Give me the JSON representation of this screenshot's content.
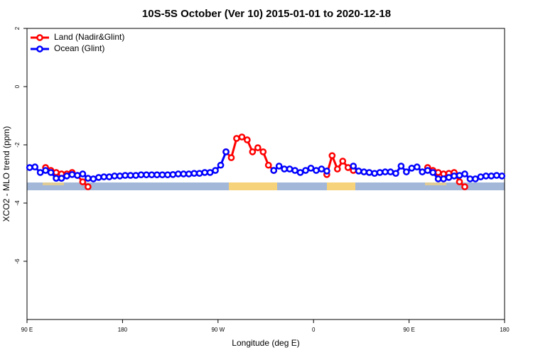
{
  "chart_data": {
    "type": "line",
    "title": "10S-5S October (Ver 10)   2015-01-01 to 2020-12-18",
    "x_label": "Longitude (deg E)",
    "y_label": "XCO2 - MLO trend (ppm)",
    "xlim": [
      90,
      540
    ],
    "ylim": [
      -8,
      2
    ],
    "xticks": [
      {
        "value": 90,
        "label": "90 E"
      },
      180,
      {
        "value": 270,
        "label": "90 W"
      },
      {
        "value": 360,
        "label": "0"
      },
      {
        "value": 450,
        "label": "90 E"
      },
      {
        "value": 540,
        "label": "180"
      }
    ],
    "yticks": [
      2,
      0,
      -2,
      -4,
      -6
    ],
    "legend": "top-left",
    "x": [
      92.5,
      97.5,
      102.5,
      107.5,
      112.5,
      117.5,
      122.5,
      127.5,
      132.5,
      137.5,
      142.5,
      147.5,
      152.5,
      157.5,
      162.5,
      167.5,
      172.5,
      177.5,
      182.5,
      187.5,
      192.5,
      197.5,
      202.5,
      207.5,
      212.5,
      217.5,
      222.5,
      227.5,
      232.5,
      237.5,
      242.5,
      247.5,
      252.5,
      257.5,
      262.5,
      267.5,
      272.5,
      277.5,
      282.5,
      287.5,
      292.5,
      297.5,
      302.5,
      307.5,
      312.5,
      317.5,
      322.5,
      327.5,
      332.5,
      337.5,
      342.5,
      347.5,
      352.5,
      357.5,
      362.5,
      367.5,
      372.5,
      377.5,
      382.5,
      387.5,
      392.5,
      397.5,
      402.5,
      407.5,
      412.5,
      417.5,
      422.5,
      427.5,
      432.5,
      437.5,
      442.5,
      447.5,
      452.5,
      457.5,
      462.5,
      467.5,
      472.5,
      477.5,
      482.5,
      487.5,
      492.5,
      497.5,
      502.5,
      507.5,
      512.5,
      517.5,
      522.5,
      527.5,
      532.5,
      537.5
    ],
    "series": [
      {
        "name": "Land (Nadir&Glint)",
        "color": "#ff0000",
        "values": [
          null,
          null,
          null,
          -2.78,
          -2.88,
          -2.95,
          -3.0,
          -3.0,
          -2.95,
          -3.05,
          -3.27,
          -3.44,
          null,
          null,
          null,
          null,
          null,
          null,
          null,
          null,
          null,
          null,
          null,
          null,
          null,
          null,
          null,
          null,
          null,
          null,
          null,
          null,
          null,
          null,
          null,
          null,
          null,
          -2.24,
          -2.44,
          -1.78,
          -1.73,
          -1.83,
          -2.24,
          -2.1,
          -2.24,
          -2.7,
          -2.88,
          null,
          null,
          null,
          null,
          null,
          null,
          null,
          null,
          null,
          -3.02,
          -2.37,
          -2.83,
          -2.56,
          -2.78,
          -2.88,
          null,
          null,
          null,
          null,
          null,
          null,
          null,
          null,
          null,
          null,
          null,
          null,
          null,
          -2.78,
          -2.88,
          -2.95,
          -3.0,
          -2.98,
          -2.95,
          -3.27,
          -3.44,
          null,
          null,
          null,
          null,
          null,
          null,
          null
        ]
      },
      {
        "name": "Ocean (Glint)",
        "color": "#0000ff",
        "values": [
          -2.78,
          -2.76,
          -2.95,
          -2.88,
          -2.95,
          -3.15,
          -3.15,
          -3.07,
          -3.02,
          -3.05,
          -3.0,
          -3.15,
          -3.17,
          -3.12,
          -3.1,
          -3.1,
          -3.07,
          -3.07,
          -3.05,
          -3.05,
          -3.05,
          -3.03,
          -3.03,
          -3.03,
          -3.03,
          -3.03,
          -3.03,
          -3.02,
          -3.0,
          -3.0,
          -3.0,
          -2.98,
          -2.98,
          -2.95,
          -2.95,
          -2.88,
          -2.7,
          -2.24,
          null,
          null,
          null,
          null,
          null,
          null,
          null,
          null,
          -2.88,
          -2.73,
          -2.83,
          -2.83,
          -2.88,
          -2.95,
          -2.88,
          -2.8,
          -2.88,
          -2.83,
          -2.9,
          null,
          null,
          null,
          null,
          -2.73,
          -2.9,
          -2.93,
          -2.95,
          -2.98,
          -2.95,
          -2.93,
          -2.93,
          -2.98,
          -2.73,
          -2.93,
          -2.8,
          -2.76,
          -2.93,
          -2.88,
          -2.95,
          -3.17,
          -3.17,
          -3.12,
          -3.07,
          -3.05,
          -3.0,
          -3.17,
          -3.17,
          -3.1,
          -3.07,
          -3.07,
          -3.05,
          -3.07
        ]
      }
    ]
  }
}
